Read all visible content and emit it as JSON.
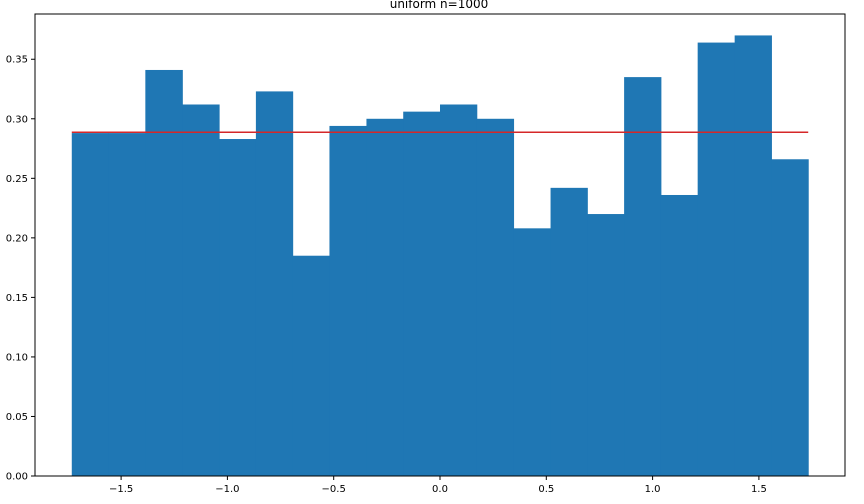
{
  "chart_data": {
    "type": "bar",
    "title": "uniform n=1000",
    "xlabel": "",
    "ylabel": "",
    "xlim": [
      -1.905,
      1.905
    ],
    "ylim": [
      0,
      0.388
    ],
    "xticks": [
      -1.5,
      -1.0,
      -0.5,
      0.0,
      0.5,
      1.0,
      1.5
    ],
    "xtick_labels": [
      "−1.5",
      "−1.0",
      "−0.5",
      "0.0",
      "0.5",
      "1.0",
      "1.5"
    ],
    "yticks": [
      0.0,
      0.05,
      0.1,
      0.15,
      0.2,
      0.25,
      0.3,
      0.35
    ],
    "ytick_labels": [
      "0.00",
      "0.05",
      "0.10",
      "0.15",
      "0.20",
      "0.25",
      "0.30",
      "0.35"
    ],
    "bin_edges": [
      -1.732,
      -1.559,
      -1.386,
      -1.212,
      -1.039,
      -0.866,
      -0.693,
      -0.52,
      -0.346,
      -0.173,
      0.0,
      0.173,
      0.346,
      0.52,
      0.693,
      0.866,
      1.039,
      1.212,
      1.386,
      1.559,
      1.732
    ],
    "values": [
      0.288,
      0.288,
      0.341,
      0.312,
      0.283,
      0.323,
      0.185,
      0.294,
      0.3,
      0.306,
      0.312,
      0.3,
      0.208,
      0.242,
      0.22,
      0.335,
      0.236,
      0.364,
      0.37,
      0.266
    ],
    "reference_line": {
      "x": [
        -1.732,
        1.732
      ],
      "y": 0.2887
    },
    "colors": {
      "bar": "#1f77b4",
      "line": "#d62728"
    },
    "grid": false
  }
}
